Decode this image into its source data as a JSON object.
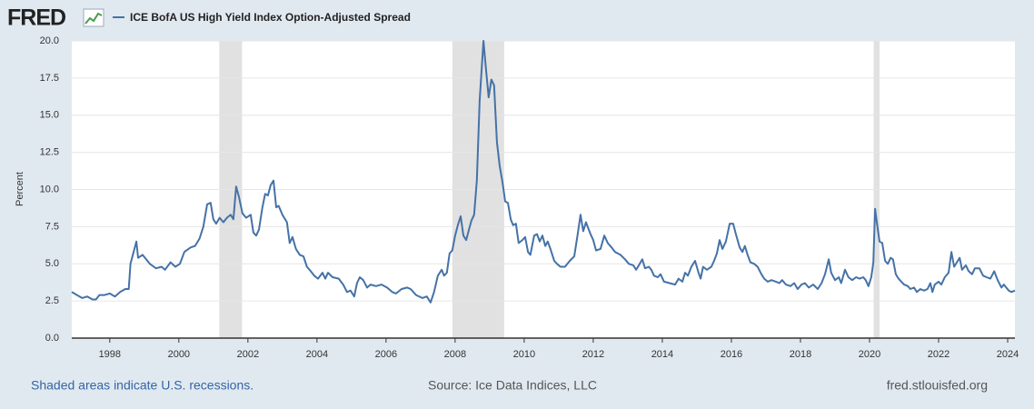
{
  "logo": "FRED",
  "chart_data": {
    "type": "line",
    "ylabel": "Percent",
    "xlim": [
      1996.9,
      2024.21
    ],
    "xticks": [
      1998,
      2000,
      2002,
      2004,
      2006,
      2008,
      2010,
      2012,
      2014,
      2016,
      2018,
      2020,
      2022,
      2024
    ],
    "ylim": [
      0,
      20
    ],
    "yticks": [
      {
        "value": 0,
        "label": "0.0"
      },
      {
        "value": 2.5,
        "label": "2.5"
      },
      {
        "value": 5,
        "label": "5.0"
      },
      {
        "value": 7.5,
        "label": "7.5"
      },
      {
        "value": 10,
        "label": "10.0"
      },
      {
        "value": 12.5,
        "label": "12.5"
      },
      {
        "value": 15,
        "label": "15.0"
      },
      {
        "value": 17.5,
        "label": "17.5"
      },
      {
        "value": 20,
        "label": "20.0"
      }
    ],
    "grid": true,
    "recessions": [
      [
        2001.17,
        2001.83
      ],
      [
        2007.92,
        2009.42
      ],
      [
        2020.12,
        2020.29
      ]
    ],
    "recession_color": "#e1e1e1",
    "x": [
      1996.9,
      1997.05,
      1997.2,
      1997.35,
      1997.5,
      1997.6,
      1997.7,
      1997.85,
      1998.0,
      1998.15,
      1998.3,
      1998.45,
      1998.55,
      1998.6,
      1998.77,
      1998.82,
      1998.95,
      1999.16,
      1999.34,
      1999.5,
      1999.6,
      1999.76,
      1999.9,
      2000.03,
      2000.16,
      2000.34,
      2000.47,
      2000.6,
      2000.71,
      2000.82,
      2000.92,
      2001.0,
      2001.08,
      2001.18,
      2001.29,
      2001.39,
      2001.5,
      2001.58,
      2001.66,
      2001.74,
      2001.84,
      2001.95,
      2002.08,
      2002.16,
      2002.24,
      2002.32,
      2002.42,
      2002.5,
      2002.58,
      2002.66,
      2002.74,
      2002.82,
      2002.89,
      2003.0,
      2003.13,
      2003.21,
      2003.29,
      2003.39,
      2003.5,
      2003.61,
      2003.71,
      2003.82,
      2003.92,
      2004.03,
      2004.16,
      2004.24,
      2004.32,
      2004.45,
      2004.63,
      2004.76,
      2004.87,
      2004.97,
      2005.08,
      2005.16,
      2005.24,
      2005.34,
      2005.45,
      2005.55,
      2005.71,
      2005.87,
      2006.03,
      2006.18,
      2006.29,
      2006.45,
      2006.61,
      2006.71,
      2006.87,
      2007.05,
      2007.18,
      2007.29,
      2007.39,
      2007.5,
      2007.61,
      2007.68,
      2007.76,
      2007.84,
      2007.92,
      2008.0,
      2008.08,
      2008.16,
      2008.24,
      2008.32,
      2008.39,
      2008.47,
      2008.55,
      2008.63,
      2008.71,
      2008.82,
      2008.89,
      2008.97,
      2009.05,
      2009.13,
      2009.21,
      2009.29,
      2009.37,
      2009.45,
      2009.53,
      2009.61,
      2009.68,
      2009.76,
      2009.84,
      2009.95,
      2010.03,
      2010.11,
      2010.18,
      2010.29,
      2010.37,
      2010.45,
      2010.53,
      2010.61,
      2010.68,
      2010.76,
      2010.87,
      2010.95,
      2011.05,
      2011.18,
      2011.32,
      2011.45,
      2011.55,
      2011.63,
      2011.71,
      2011.79,
      2011.92,
      2012.0,
      2012.08,
      2012.21,
      2012.32,
      2012.42,
      2012.53,
      2012.63,
      2012.79,
      2012.92,
      2013.03,
      2013.16,
      2013.24,
      2013.32,
      2013.42,
      2013.5,
      2013.61,
      2013.68,
      2013.76,
      2013.87,
      2013.95,
      2014.05,
      2014.21,
      2014.37,
      2014.47,
      2014.58,
      2014.66,
      2014.74,
      2014.84,
      2014.95,
      2015.05,
      2015.11,
      2015.18,
      2015.29,
      2015.42,
      2015.5,
      2015.58,
      2015.66,
      2015.74,
      2015.84,
      2015.95,
      2016.05,
      2016.13,
      2016.24,
      2016.32,
      2016.39,
      2016.47,
      2016.55,
      2016.66,
      2016.76,
      2016.87,
      2016.95,
      2017.05,
      2017.16,
      2017.29,
      2017.39,
      2017.47,
      2017.58,
      2017.71,
      2017.82,
      2017.92,
      2018.03,
      2018.13,
      2018.24,
      2018.37,
      2018.5,
      2018.61,
      2018.71,
      2018.82,
      2018.89,
      2019.0,
      2019.11,
      2019.18,
      2019.29,
      2019.39,
      2019.5,
      2019.61,
      2019.71,
      2019.82,
      2019.89,
      2019.97,
      2020.05,
      2020.11,
      2020.16,
      2020.21,
      2020.29,
      2020.37,
      2020.45,
      2020.53,
      2020.61,
      2020.68,
      2020.76,
      2020.84,
      2020.92,
      2021.0,
      2021.11,
      2021.18,
      2021.29,
      2021.37,
      2021.47,
      2021.58,
      2021.68,
      2021.76,
      2021.82,
      2021.89,
      2022.0,
      2022.08,
      2022.18,
      2022.29,
      2022.37,
      2022.45,
      2022.53,
      2022.61,
      2022.68,
      2022.79,
      2022.87,
      2022.97,
      2023.05,
      2023.18,
      2023.29,
      2023.39,
      2023.5,
      2023.61,
      2023.71,
      2023.82,
      2023.89,
      2024.03,
      2024.11,
      2024.21
    ],
    "series": [
      {
        "name": "ICE BofA US High Yield Index Option-Adjusted Spread",
        "color": "#4572a7",
        "values": [
          3.1,
          2.9,
          2.7,
          2.8,
          2.6,
          2.6,
          2.9,
          2.9,
          3.0,
          2.8,
          3.1,
          3.3,
          3.3,
          5.0,
          6.5,
          5.4,
          5.6,
          5.0,
          4.7,
          4.8,
          4.6,
          5.1,
          4.8,
          5.0,
          5.8,
          6.1,
          6.2,
          6.7,
          7.5,
          9.0,
          9.1,
          8.0,
          7.7,
          8.1,
          7.8,
          8.1,
          8.3,
          8.0,
          10.2,
          9.5,
          8.4,
          8.1,
          8.3,
          7.1,
          6.9,
          7.3,
          8.8,
          9.7,
          9.6,
          10.3,
          10.6,
          8.8,
          8.9,
          8.3,
          7.8,
          6.4,
          6.8,
          6.0,
          5.6,
          5.5,
          4.8,
          4.5,
          4.2,
          4.0,
          4.4,
          4.0,
          4.4,
          4.1,
          4.0,
          3.6,
          3.1,
          3.2,
          2.8,
          3.7,
          4.1,
          3.9,
          3.4,
          3.6,
          3.5,
          3.6,
          3.4,
          3.1,
          3.0,
          3.3,
          3.4,
          3.3,
          2.9,
          2.7,
          2.8,
          2.4,
          3.1,
          4.2,
          4.6,
          4.2,
          4.4,
          5.7,
          5.9,
          6.9,
          7.6,
          8.2,
          6.9,
          6.6,
          7.2,
          7.9,
          8.3,
          10.6,
          16.0,
          20.0,
          18.2,
          16.2,
          17.4,
          17.0,
          13.2,
          11.6,
          10.5,
          9.2,
          9.1,
          8.0,
          7.6,
          7.7,
          6.4,
          6.6,
          6.8,
          5.8,
          5.6,
          6.9,
          7.0,
          6.5,
          6.9,
          6.2,
          6.5,
          6.0,
          5.2,
          5.0,
          4.8,
          4.8,
          5.2,
          5.5,
          7.0,
          8.3,
          7.2,
          7.8,
          7.0,
          6.6,
          5.9,
          6.0,
          6.9,
          6.4,
          6.1,
          5.8,
          5.6,
          5.3,
          5.0,
          4.9,
          4.6,
          4.9,
          5.3,
          4.7,
          4.8,
          4.6,
          4.2,
          4.1,
          4.3,
          3.8,
          3.7,
          3.6,
          4.0,
          3.8,
          4.4,
          4.2,
          4.8,
          5.2,
          4.4,
          4.0,
          4.8,
          4.6,
          4.8,
          5.2,
          5.7,
          6.6,
          6.0,
          6.5,
          7.7,
          7.7,
          7.0,
          6.1,
          5.8,
          6.2,
          5.6,
          5.1,
          5.0,
          4.8,
          4.3,
          4.0,
          3.8,
          3.9,
          3.8,
          3.7,
          3.9,
          3.6,
          3.5,
          3.7,
          3.3,
          3.6,
          3.7,
          3.4,
          3.6,
          3.3,
          3.7,
          4.3,
          5.3,
          4.4,
          3.9,
          4.1,
          3.7,
          4.6,
          4.1,
          3.9,
          4.1,
          4.0,
          4.1,
          3.9,
          3.5,
          4.1,
          5.1,
          8.7,
          7.8,
          6.5,
          6.4,
          5.2,
          5.0,
          5.4,
          5.3,
          4.3,
          4.0,
          3.8,
          3.6,
          3.5,
          3.3,
          3.4,
          3.1,
          3.3,
          3.2,
          3.3,
          3.7,
          3.1,
          3.6,
          3.8,
          3.6,
          4.1,
          4.4,
          5.8,
          4.8,
          5.1,
          5.4,
          4.6,
          4.9,
          4.5,
          4.3,
          4.7,
          4.7,
          4.2,
          4.1,
          4.0,
          4.5,
          3.9,
          3.4,
          3.6,
          3.2,
          3.1,
          3.2
        ]
      }
    ]
  },
  "notes": {
    "left": "Shaded areas indicate U.S. recessions.",
    "center": "Source: Ice Data Indices, LLC",
    "right": "fred.stlouisfed.org"
  }
}
